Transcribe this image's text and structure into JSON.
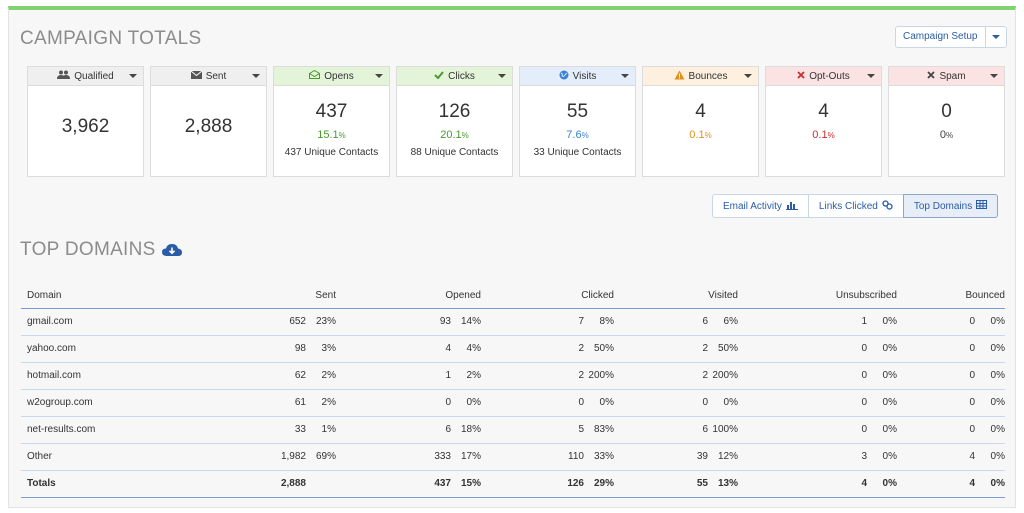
{
  "header": {
    "title": "CAMPAIGN TOTALS",
    "setup_label": "Campaign Setup"
  },
  "colors": {
    "green": "#4a9a2e",
    "blue": "#3b82d6",
    "orange": "#e0901b",
    "red": "#c9302c",
    "grey": "#666666"
  },
  "cards": [
    {
      "label": "Qualified",
      "icon": "users-icon",
      "value": "3,962"
    },
    {
      "label": "Sent",
      "icon": "envelope-icon",
      "value": "2,888"
    },
    {
      "label": "Opens",
      "icon": "open-envelope-icon",
      "value": "437",
      "pct": "15.1",
      "unique": "437 Unique Contacts"
    },
    {
      "label": "Clicks",
      "icon": "check-icon",
      "value": "126",
      "pct": "20.1",
      "unique": "88 Unique Contacts"
    },
    {
      "label": "Visits",
      "icon": "globe-icon",
      "value": "55",
      "pct": "7.6",
      "unique": "33 Unique Contacts"
    },
    {
      "label": "Bounces",
      "icon": "warning-icon",
      "value": "4",
      "pct": "0.1"
    },
    {
      "label": "Opt-Outs",
      "icon": "x-icon",
      "value": "4",
      "pct": "0.1"
    },
    {
      "label": "Spam",
      "icon": "x-icon",
      "value": "0",
      "pct": "0"
    }
  ],
  "views": {
    "email_activity": "Email Activity",
    "links_clicked": "Links Clicked",
    "top_domains": "Top Domains"
  },
  "domains": {
    "title": "TOP DOMAINS",
    "headers": [
      "Domain",
      "Sent",
      "Opened",
      "Clicked",
      "Visited",
      "Unsubscribed",
      "Bounced"
    ],
    "rows": [
      [
        "gmail.com",
        "652",
        "23%",
        "93",
        "14%",
        "7",
        "8%",
        "6",
        "6%",
        "1",
        "0%",
        "0",
        "0%"
      ],
      [
        "yahoo.com",
        "98",
        "3%",
        "4",
        "4%",
        "2",
        "50%",
        "2",
        "50%",
        "0",
        "0%",
        "0",
        "0%"
      ],
      [
        "hotmail.com",
        "62",
        "2%",
        "1",
        "2%",
        "2",
        "200%",
        "2",
        "200%",
        "0",
        "0%",
        "0",
        "0%"
      ],
      [
        "w2ogroup.com",
        "61",
        "2%",
        "0",
        "0%",
        "0",
        "0%",
        "0",
        "0%",
        "0",
        "0%",
        "0",
        "0%"
      ],
      [
        "net-results.com",
        "33",
        "1%",
        "6",
        "18%",
        "5",
        "83%",
        "6",
        "100%",
        "0",
        "0%",
        "0",
        "0%"
      ],
      [
        "Other",
        "1,982",
        "69%",
        "333",
        "17%",
        "110",
        "33%",
        "39",
        "12%",
        "3",
        "0%",
        "4",
        "0%"
      ]
    ],
    "totals": [
      "Totals",
      "2,888",
      "",
      "437",
      "15%",
      "126",
      "29%",
      "55",
      "13%",
      "4",
      "0%",
      "4",
      "0%"
    ]
  }
}
